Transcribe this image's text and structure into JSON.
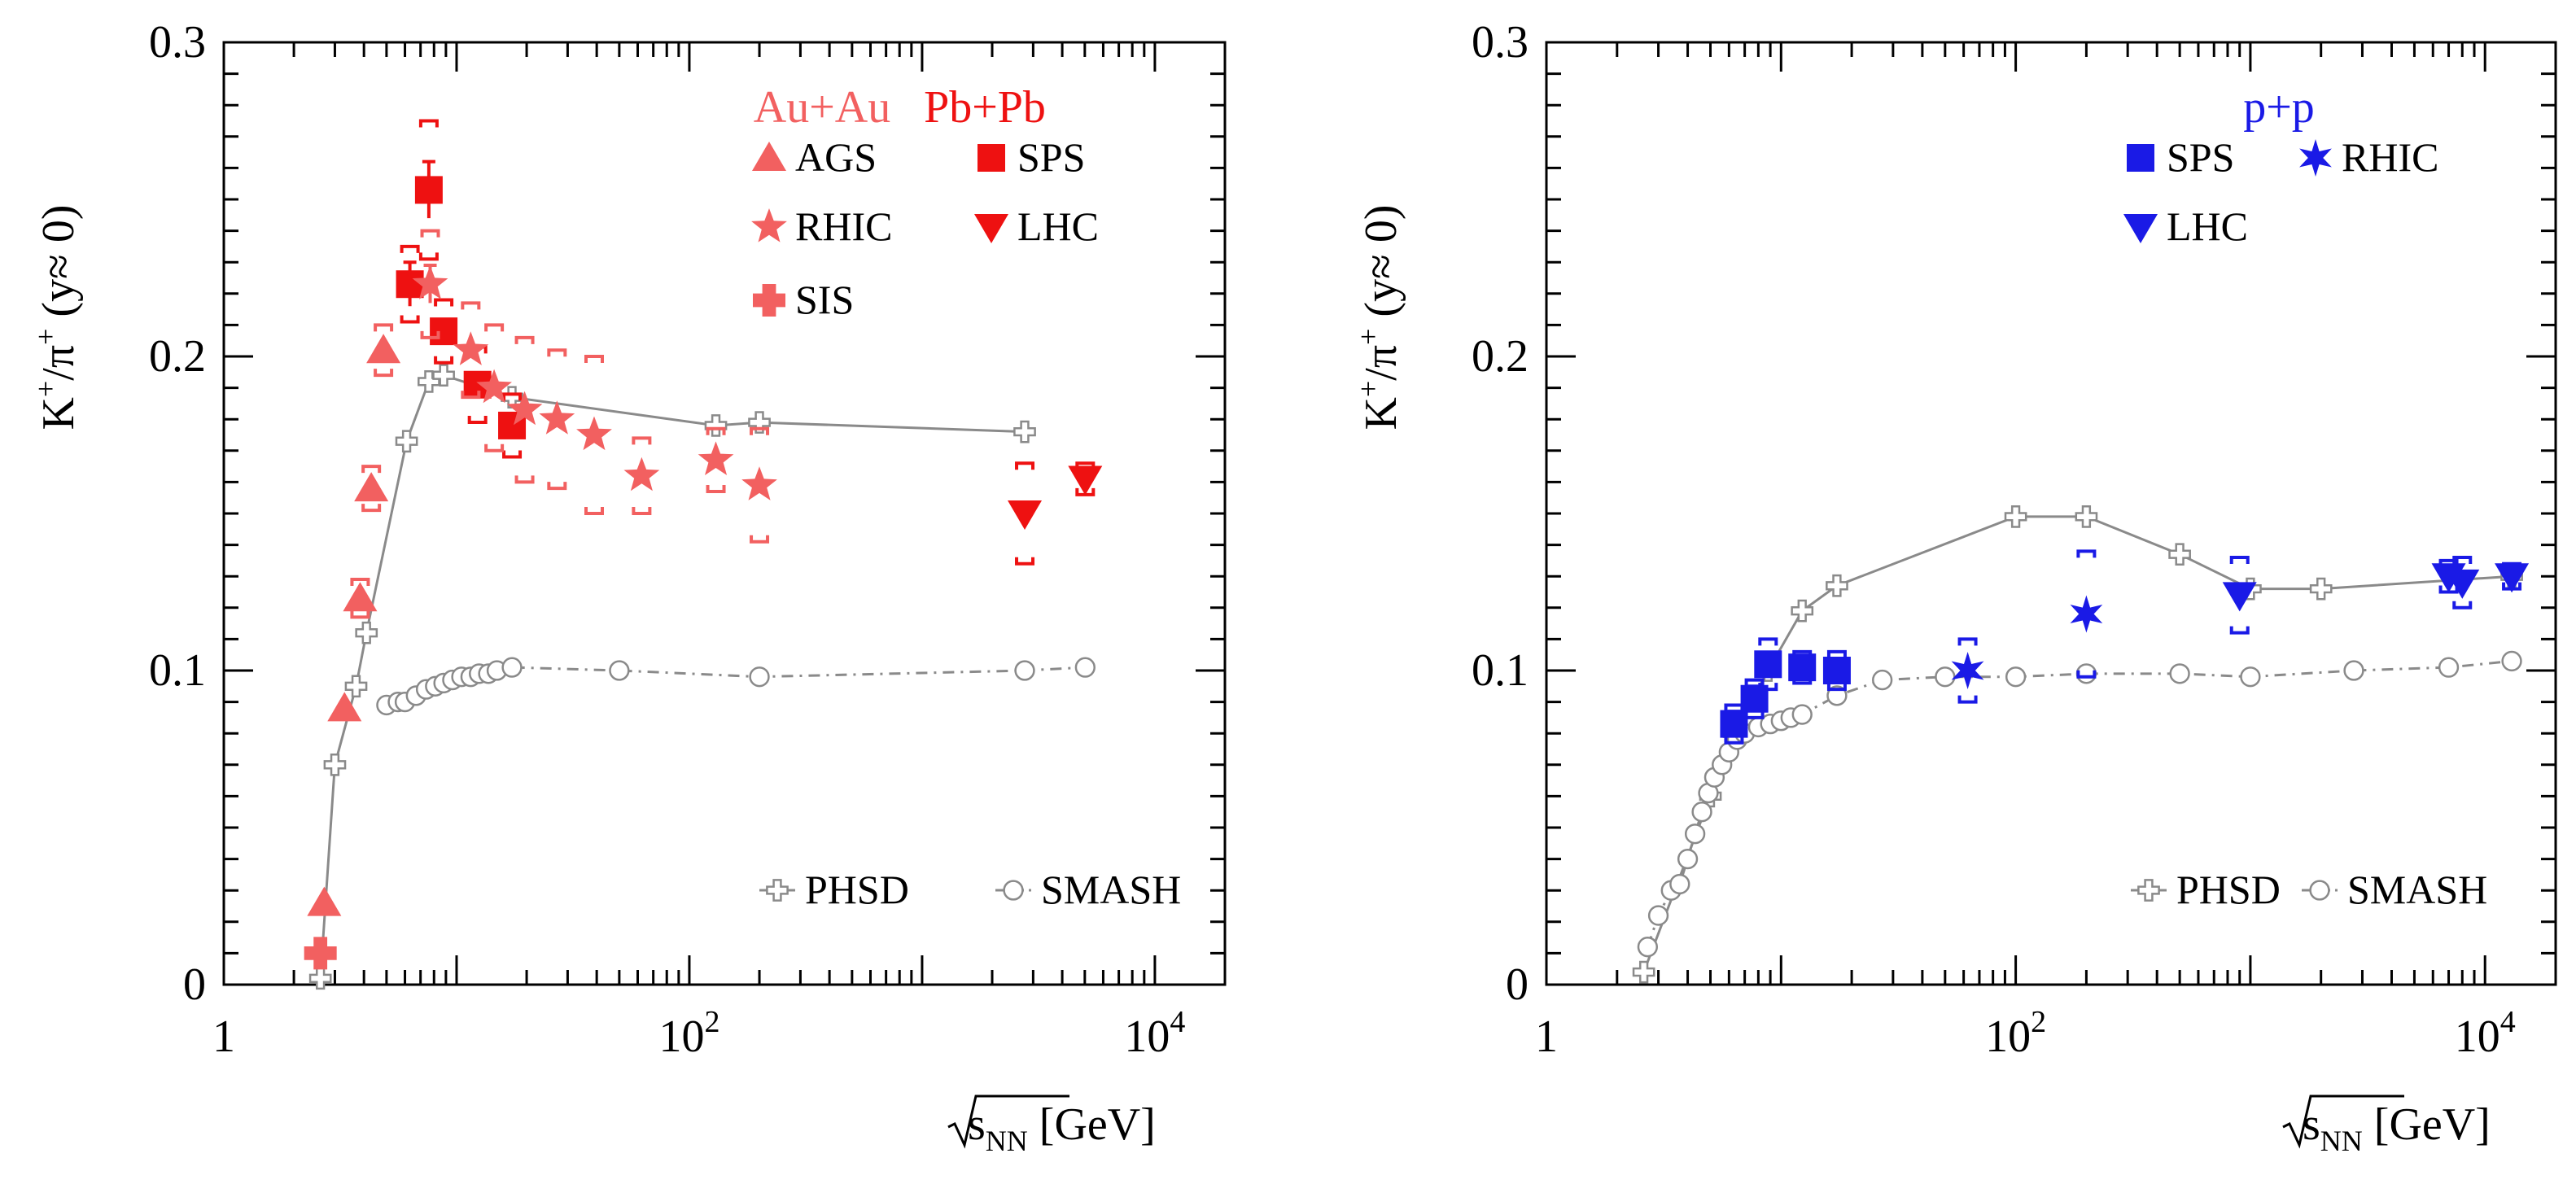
{
  "chart_data": [
    {
      "type": "scatter",
      "title": "",
      "xlabel": "√s_NN [GeV]",
      "ylabel": "K+/π+ (y≈0)",
      "xscale": "log",
      "xlim": [
        1,
        20000
      ],
      "ylim": [
        0,
        0.3
      ],
      "xticks": [
        {
          "v": 1,
          "label": "1"
        },
        {
          "v": 100,
          "label": "10",
          "sup": "2"
        },
        {
          "v": 10000,
          "label": "10",
          "sup": "4"
        }
      ],
      "yticks": [
        {
          "v": 0,
          "label": "0"
        },
        {
          "v": 0.1,
          "label": "0.1"
        },
        {
          "v": 0.2,
          "label": "0.2"
        },
        {
          "v": 0.3,
          "label": "0.3"
        }
      ],
      "legend_headers": [
        {
          "text": "Au+Au",
          "color": "#f26060"
        },
        {
          "text": "Pb+Pb",
          "color": "#ee1111"
        }
      ],
      "series": [
        {
          "name": "AGS",
          "marker": "triangle-up",
          "color": "#f26060",
          "points": [
            [
              2.7,
              0.026,
              0,
              0
            ],
            [
              3.3,
              0.088,
              0,
              0
            ],
            [
              3.85,
              0.123,
              0.006,
              0
            ],
            [
              4.3,
              0.158,
              0.007,
              0
            ],
            [
              4.85,
              0.202,
              0.008,
              0
            ]
          ]
        },
        {
          "name": "SPS",
          "marker": "square",
          "color": "#ee1111",
          "points": [
            [
              6.3,
              0.223,
              0.012,
              0.007
            ],
            [
              7.6,
              0.253,
              0.022,
              0.009
            ],
            [
              8.8,
              0.208,
              0.01,
              0
            ],
            [
              12.3,
              0.191,
              0.012,
              0
            ],
            [
              17.3,
              0.178,
              0.01,
              0
            ]
          ]
        },
        {
          "name": "RHIC",
          "marker": "star5",
          "color": "#f26060",
          "points": [
            [
              7.7,
              0.223,
              0.017,
              0.006
            ],
            [
              11.5,
              0.202,
              0.015,
              0
            ],
            [
              14.5,
              0.19,
              0.02,
              0
            ],
            [
              19.6,
              0.183,
              0.023,
              0
            ],
            [
              27,
              0.18,
              0.022,
              0
            ],
            [
              39,
              0.175,
              0.025,
              0
            ],
            [
              62.4,
              0.162,
              0.012,
              0
            ],
            [
              130,
              0.167,
              0.01,
              0
            ],
            [
              200,
              0.159,
              0.018,
              0
            ]
          ]
        },
        {
          "name": "LHC",
          "marker": "triangle-down",
          "color": "#ee1111",
          "points": [
            [
              2760,
              0.15,
              0.016,
              0
            ],
            [
              5020,
              0.161,
              0.005,
              0
            ]
          ]
        },
        {
          "name": "SIS",
          "marker": "cross",
          "color": "#f26060",
          "points": [
            [
              2.6,
              0.01,
              0,
              0
            ]
          ]
        },
        {
          "name": "PHSD",
          "marker": "open-cross",
          "color": "#8a8a8a",
          "line": "solid",
          "points": [
            [
              2.6,
              0.002
            ],
            [
              3.0,
              0.07
            ],
            [
              3.7,
              0.095
            ],
            [
              4.1,
              0.112
            ],
            [
              6.1,
              0.173
            ],
            [
              7.6,
              0.192
            ],
            [
              8.8,
              0.194
            ],
            [
              17.3,
              0.187
            ],
            [
              130,
              0.178
            ],
            [
              200,
              0.179
            ],
            [
              2760,
              0.176
            ]
          ]
        },
        {
          "name": "SMASH",
          "marker": "open-circle",
          "color": "#8a8a8a",
          "line": "dashdot",
          "points": [
            [
              5.0,
              0.089
            ],
            [
              5.6,
              0.09
            ],
            [
              6.0,
              0.09
            ],
            [
              6.7,
              0.092
            ],
            [
              7.4,
              0.094
            ],
            [
              8.1,
              0.095
            ],
            [
              8.8,
              0.096
            ],
            [
              9.6,
              0.097
            ],
            [
              10.5,
              0.098
            ],
            [
              11.5,
              0.098
            ],
            [
              12.5,
              0.099
            ],
            [
              13.7,
              0.099
            ],
            [
              14.9,
              0.1
            ],
            [
              17.3,
              0.101
            ],
            [
              50,
              0.1
            ],
            [
              200,
              0.098
            ],
            [
              2760,
              0.1
            ],
            [
              5020,
              0.101
            ]
          ]
        }
      ],
      "legend": {
        "items": [
          "AGS",
          "SPS",
          "RHIC",
          "LHC",
          "SIS"
        ],
        "models": [
          "PHSD",
          "SMASH"
        ]
      }
    },
    {
      "type": "scatter",
      "title": "",
      "xlabel": "√s_NN [GeV]",
      "ylabel": "K+/π+ (y≈0)",
      "xscale": "log",
      "xlim": [
        1,
        20000
      ],
      "ylim": [
        0,
        0.3
      ],
      "xticks": [
        {
          "v": 1,
          "label": "1"
        },
        {
          "v": 100,
          "label": "10",
          "sup": "2"
        },
        {
          "v": 10000,
          "label": "10",
          "sup": "4"
        }
      ],
      "yticks": [
        {
          "v": 0,
          "label": "0"
        },
        {
          "v": 0.1,
          "label": "0.1"
        },
        {
          "v": 0.2,
          "label": "0.2"
        },
        {
          "v": 0.3,
          "label": "0.3"
        }
      ],
      "legend_headers": [
        {
          "text": "p+p",
          "color": "#1a1ae6"
        }
      ],
      "series": [
        {
          "name": "SPS",
          "marker": "square",
          "color": "#1a1ae6",
          "points": [
            [
              6.3,
              0.083,
              0.006,
              0.004
            ],
            [
              7.7,
              0.091,
              0.006,
              0.004
            ],
            [
              8.8,
              0.102,
              0.008,
              0
            ],
            [
              12.3,
              0.101,
              0.005,
              0
            ],
            [
              17.3,
              0.1,
              0.006,
              0
            ]
          ]
        },
        {
          "name": "RHIC",
          "marker": "star6",
          "color": "#1a1ae6",
          "points": [
            [
              62.4,
              0.1,
              0.01,
              0
            ],
            [
              200,
              0.118,
              0.02,
              0
            ]
          ]
        },
        {
          "name": "LHC",
          "marker": "triangle-down",
          "color": "#1a1ae6",
          "points": [
            [
              900,
              0.124,
              0.012,
              0
            ],
            [
              7000,
              0.13,
              0.005,
              0
            ],
            [
              8000,
              0.128,
              0.008,
              0
            ],
            [
              13000,
              0.13,
              0.004,
              0
            ]
          ]
        },
        {
          "name": "PHSD",
          "marker": "open-cross",
          "color": "#8a8a8a",
          "line": "solid",
          "points": [
            [
              2.6,
              0.004
            ],
            [
              5.0,
              0.06
            ],
            [
              6.3,
              0.08
            ],
            [
              8.8,
              0.1
            ],
            [
              12.3,
              0.119
            ],
            [
              17.3,
              0.127
            ],
            [
              100,
              0.149
            ],
            [
              200,
              0.149
            ],
            [
              500,
              0.137
            ],
            [
              1000,
              0.126
            ],
            [
              2000,
              0.126
            ],
            [
              13000,
              0.13
            ]
          ]
        },
        {
          "name": "SMASH",
          "marker": "open-circle",
          "color": "#8a8a8a",
          "line": "dashdot",
          "points": [
            [
              2.7,
              0.012
            ],
            [
              3.0,
              0.022
            ],
            [
              3.4,
              0.03
            ],
            [
              3.7,
              0.032
            ],
            [
              4.0,
              0.04
            ],
            [
              4.3,
              0.048
            ],
            [
              4.6,
              0.055
            ],
            [
              4.9,
              0.061
            ],
            [
              5.2,
              0.066
            ],
            [
              5.6,
              0.07
            ],
            [
              6.0,
              0.074
            ],
            [
              6.5,
              0.078
            ],
            [
              7.0,
              0.08
            ],
            [
              8.0,
              0.082
            ],
            [
              9.0,
              0.083
            ],
            [
              10,
              0.084
            ],
            [
              11,
              0.085
            ],
            [
              12.3,
              0.086
            ],
            [
              17.3,
              0.092
            ],
            [
              27,
              0.097
            ],
            [
              50,
              0.098
            ],
            [
              100,
              0.098
            ],
            [
              200,
              0.099
            ],
            [
              500,
              0.099
            ],
            [
              1000,
              0.098
            ],
            [
              2760,
              0.1
            ],
            [
              7000,
              0.101
            ],
            [
              13000,
              0.103
            ]
          ]
        }
      ],
      "legend": {
        "items": [
          "SPS",
          "RHIC",
          "LHC"
        ],
        "models": [
          "PHSD",
          "SMASH"
        ]
      }
    }
  ]
}
